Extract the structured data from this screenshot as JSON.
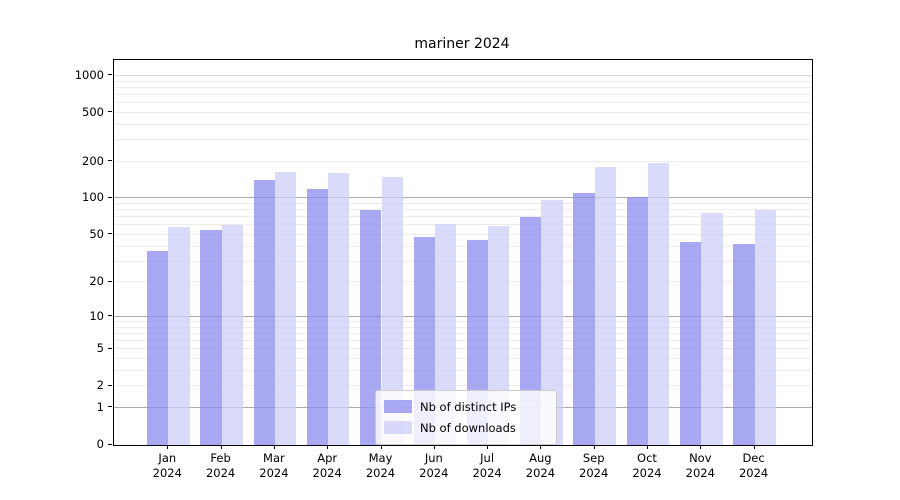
{
  "title": "mariner 2024",
  "chart_data": {
    "type": "bar",
    "title": "mariner 2024",
    "categories": [
      {
        "month": "Jan",
        "year": "2024"
      },
      {
        "month": "Feb",
        "year": "2024"
      },
      {
        "month": "Mar",
        "year": "2024"
      },
      {
        "month": "Apr",
        "year": "2024"
      },
      {
        "month": "May",
        "year": "2024"
      },
      {
        "month": "Jun",
        "year": "2024"
      },
      {
        "month": "Jul",
        "year": "2024"
      },
      {
        "month": "Aug",
        "year": "2024"
      },
      {
        "month": "Sep",
        "year": "2024"
      },
      {
        "month": "Oct",
        "year": "2024"
      },
      {
        "month": "Nov",
        "year": "2024"
      },
      {
        "month": "Dec",
        "year": "2024"
      }
    ],
    "series": [
      {
        "name": "Nb of distinct IPs",
        "color": "rgba(136,136,238,0.72)",
        "values": [
          37,
          55,
          143,
          119,
          80,
          48,
          45,
          70,
          110,
          103,
          44,
          42
        ]
      },
      {
        "name": "Nb of downloads",
        "color": "rgba(204,204,250,0.72)",
        "values": [
          58,
          60,
          166,
          162,
          150,
          62,
          59,
          97,
          180,
          195,
          76,
          80
        ]
      }
    ],
    "y_ticks": [
      0,
      1,
      2,
      5,
      10,
      20,
      50,
      100,
      200,
      500,
      1000
    ],
    "y_scale": "log10(value+1)",
    "ylim": [
      0,
      1335
    ],
    "grid": true,
    "legend_position": "bottom-center",
    "xlabel": "",
    "ylabel": ""
  }
}
